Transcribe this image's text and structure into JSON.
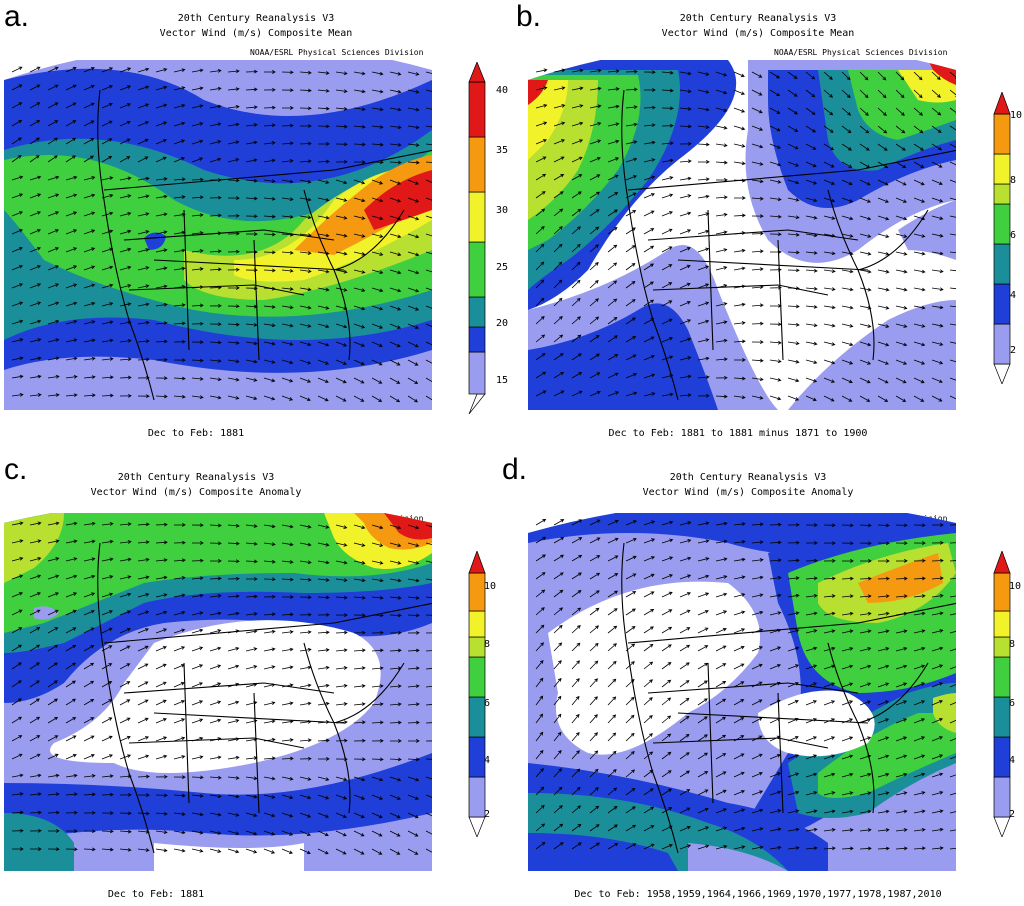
{
  "panels": [
    {
      "label": "a.",
      "title1": "20th Century Reanalysis V3",
      "title2": "Vector Wind (m/s) Composite Mean",
      "source": "NOAA/ESRL Physical Sciences Division",
      "footer": "Dec to Feb: 1881",
      "colorbar_ticks": [
        "15",
        "20",
        "25",
        "30",
        "35",
        "40"
      ]
    },
    {
      "label": "b.",
      "title1": "20th Century Reanalysis V3",
      "title2": "Vector Wind (m/s) Composite Mean",
      "source": "NOAA/ESRL Physical Sciences Division",
      "footer": "Dec to Feb: 1881 to 1881 minus 1871 to 1900",
      "colorbar_ticks": [
        "2",
        "4",
        "6",
        "8",
        "10"
      ]
    },
    {
      "label": "c.",
      "title1": "20th Century Reanalysis V3",
      "title2": "Vector Wind (m/s) Composite Anomaly",
      "source": "NOAA/ESRL Physical Sciences Division",
      "footer": "Dec to Feb: 1881",
      "colorbar_ticks": [
        "2",
        "4",
        "6",
        "8",
        "10"
      ]
    },
    {
      "label": "d.",
      "title1": "20th Century Reanalysis V3",
      "title2": "Vector Wind (m/s) Composite Anomaly",
      "source": "NOAA/ESRL Physical Sciences Division",
      "footer": "Dec to Feb: 1958,1959,1964,1966,1969,1970,1977,1978,1987,2010",
      "colorbar_ticks": [
        "2",
        "4",
        "6",
        "8",
        "10"
      ]
    }
  ],
  "colors": {
    "white": "#ffffff",
    "lavender": "#9a9cf0",
    "blue": "#1f3fd8",
    "teal": "#1a8f9a",
    "green": "#3fcf3f",
    "yellowgreen": "#b8e030",
    "yellow": "#f2f22a",
    "orange": "#f59a10",
    "red": "#e01818"
  }
}
